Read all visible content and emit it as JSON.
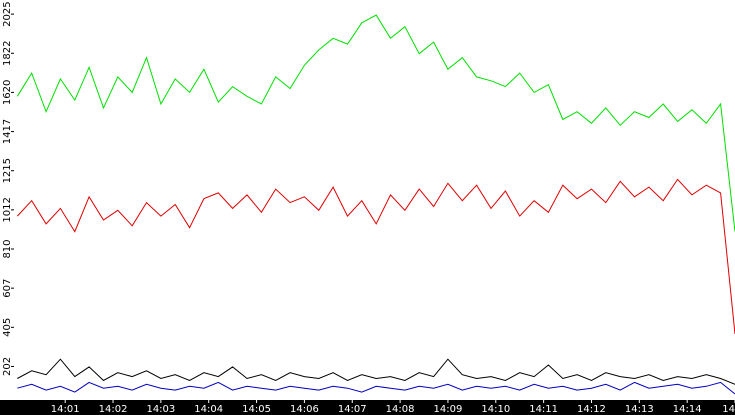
{
  "chart_data": {
    "type": "line",
    "x": [
      0,
      0.3,
      0.6,
      0.9,
      1.2,
      1.5,
      1.8,
      2.1,
      2.4,
      2.7,
      3,
      3.3,
      3.6,
      3.9,
      4.2,
      4.5,
      4.8,
      5.1,
      5.4,
      5.7,
      6,
      6.3,
      6.6,
      6.9,
      7.2,
      7.5,
      7.8,
      8.1,
      8.4,
      8.7,
      9,
      9.3,
      9.6,
      9.9,
      10.2,
      10.5,
      10.8,
      11.1,
      11.4,
      11.7,
      12,
      12.3,
      12.6,
      12.9,
      13.2,
      13.5,
      13.8,
      14.1,
      14.4,
      14.7,
      15
    ],
    "series": [
      {
        "color": "#00e000",
        "values": [
          1600,
          1720,
          1520,
          1690,
          1580,
          1750,
          1540,
          1700,
          1620,
          1800,
          1560,
          1690,
          1620,
          1740,
          1570,
          1650,
          1600,
          1560,
          1700,
          1640,
          1760,
          1840,
          1900,
          1870,
          1980,
          2020,
          1900,
          1960,
          1820,
          1880,
          1740,
          1800,
          1700,
          1680,
          1650,
          1720,
          1620,
          1660,
          1480,
          1520,
          1460,
          1540,
          1450,
          1520,
          1490,
          1560,
          1470,
          1530,
          1460,
          1560,
          900
        ]
      },
      {
        "color": "#e00000",
        "values": [
          980,
          1060,
          940,
          1020,
          900,
          1080,
          960,
          1010,
          930,
          1050,
          980,
          1040,
          920,
          1070,
          1100,
          1020,
          1090,
          1000,
          1120,
          1050,
          1080,
          1010,
          1130,
          980,
          1060,
          940,
          1090,
          1010,
          1120,
          1030,
          1150,
          1060,
          1140,
          1020,
          1110,
          980,
          1060,
          1000,
          1140,
          1070,
          1120,
          1050,
          1160,
          1080,
          1130,
          1060,
          1170,
          1090,
          1140,
          1100,
          370
        ]
      },
      {
        "color": "#000000",
        "values": [
          140,
          180,
          160,
          240,
          150,
          200,
          130,
          170,
          150,
          180,
          140,
          160,
          130,
          170,
          150,
          200,
          140,
          160,
          130,
          170,
          150,
          140,
          170,
          130,
          160,
          140,
          150,
          130,
          170,
          150,
          240,
          160,
          140,
          150,
          130,
          170,
          150,
          210,
          140,
          160,
          130,
          170,
          150,
          140,
          160,
          130,
          150,
          140,
          160,
          140,
          110
        ]
      },
      {
        "color": "#0000c0",
        "values": [
          90,
          110,
          80,
          100,
          70,
          120,
          90,
          100,
          80,
          110,
          90,
          80,
          100,
          90,
          120,
          80,
          100,
          90,
          80,
          100,
          90,
          80,
          100,
          90,
          70,
          100,
          90,
          80,
          100,
          90,
          110,
          80,
          100,
          90,
          100,
          80,
          110,
          90,
          100,
          80,
          90,
          110,
          80,
          120,
          90,
          100,
          110,
          90,
          100,
          120,
          60
        ]
      }
    ],
    "xlim": [
      -0.07,
      15
    ],
    "xticks": [
      {
        "value": 1,
        "label": "14:01"
      },
      {
        "value": 2,
        "label": "14:02"
      },
      {
        "value": 3,
        "label": "14:03"
      },
      {
        "value": 4,
        "label": "14:04"
      },
      {
        "value": 5,
        "label": "14:05"
      },
      {
        "value": 6,
        "label": "14:06"
      },
      {
        "value": 7,
        "label": "14:07"
      },
      {
        "value": 8,
        "label": "14:08"
      },
      {
        "value": 9,
        "label": "14:09"
      },
      {
        "value": 10,
        "label": "14:10"
      },
      {
        "value": 11,
        "label": "14:11"
      },
      {
        "value": 12,
        "label": "14:12"
      },
      {
        "value": 13,
        "label": "14:13"
      },
      {
        "value": 14,
        "label": "14:14"
      },
      {
        "value": 15,
        "label": "14"
      }
    ],
    "ylim": [
      29,
      2098
    ],
    "yticks": [
      {
        "value": 202.5,
        "label": "202"
      },
      405,
      {
        "value": 607.5,
        "label": "607"
      },
      810,
      {
        "value": 1012.5,
        "label": "1012"
      },
      1215,
      {
        "value": 1417.5,
        "label": "1417"
      },
      1620,
      {
        "value": 1822.5,
        "label": "1822"
      },
      2025
    ]
  }
}
